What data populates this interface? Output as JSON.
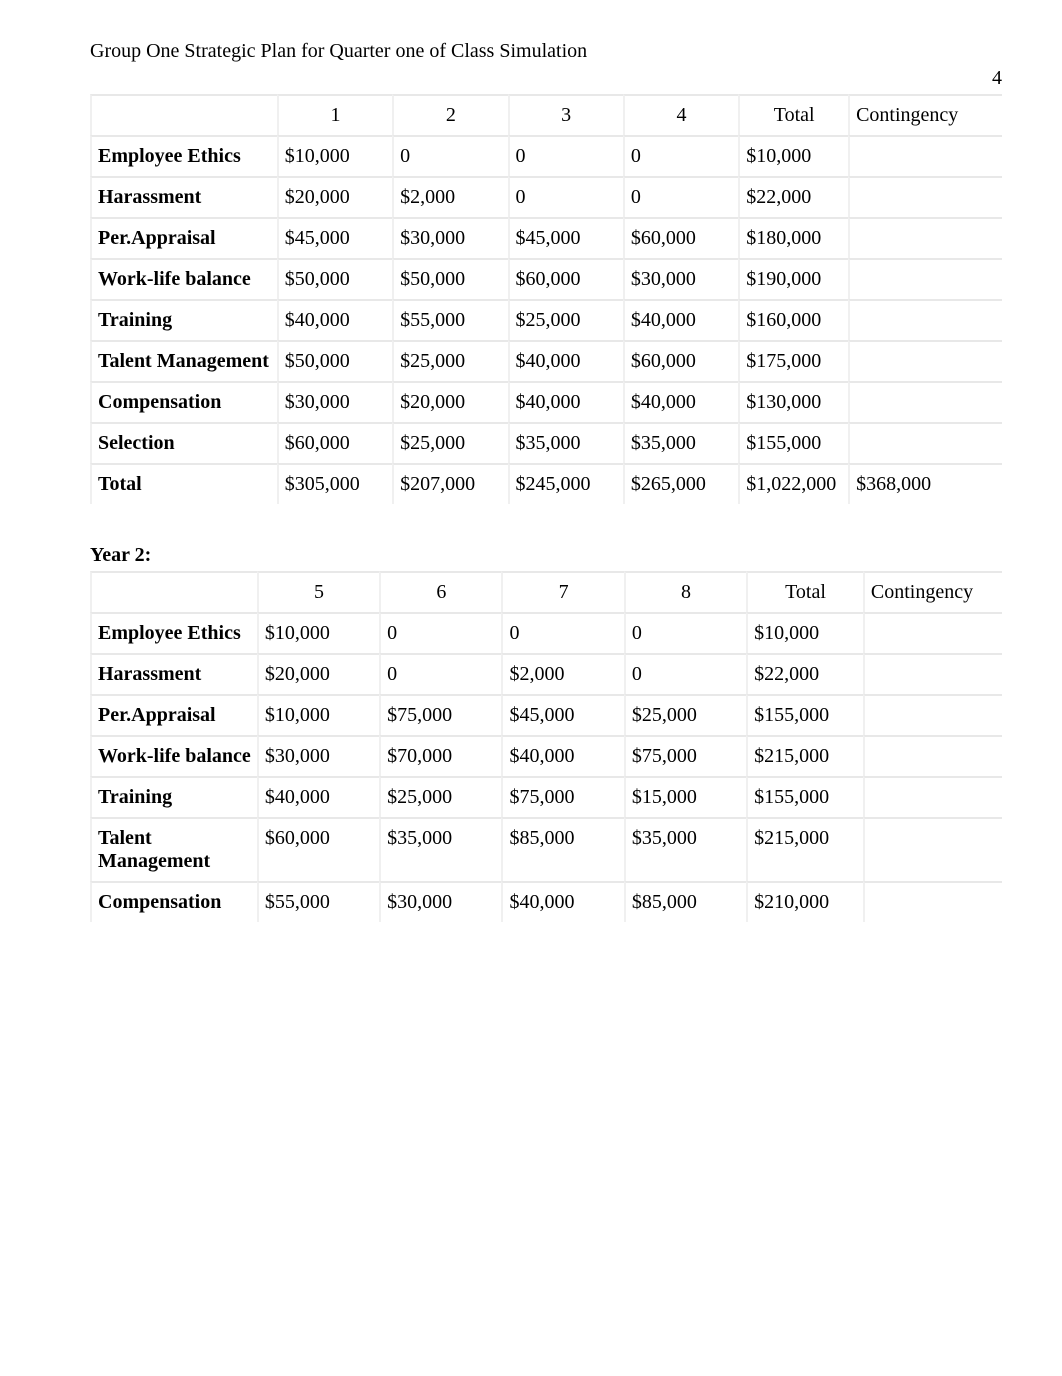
{
  "header": {
    "title": "Group One Strategic Plan for Quarter one of Class Simulation",
    "page_number": "4"
  },
  "table1": {
    "columns": [
      "",
      "1",
      "2",
      "3",
      "4",
      "Total",
      "Contingency"
    ],
    "rows": [
      {
        "label": "Employee Ethics",
        "c1": "$10,000",
        "c2": "0",
        "c3": "0",
        "c4": "0",
        "total": "$10,000",
        "cont": ""
      },
      {
        "label": "Harassment",
        "c1": "$20,000",
        "c2": "$2,000",
        "c3": "0",
        "c4": "0",
        "total": "$22,000",
        "cont": ""
      },
      {
        "label": "Per.Appraisal",
        "c1": "$45,000",
        "c2": "$30,000",
        "c3": "$45,000",
        "c4": "$60,000",
        "total": "$180,000",
        "cont": ""
      },
      {
        "label": "Work-life balance",
        "c1": "$50,000",
        "c2": "$50,000",
        "c3": "$60,000",
        "c4": "$30,000",
        "total": "$190,000",
        "cont": ""
      },
      {
        "label": "Training",
        "c1": "$40,000",
        "c2": "$55,000",
        "c3": "$25,000",
        "c4": "$40,000",
        "total": "$160,000",
        "cont": ""
      },
      {
        "label": "Talent Management",
        "c1": "$50,000",
        "c2": "$25,000",
        "c3": "$40,000",
        "c4": "$60,000",
        "total": "$175,000",
        "cont": ""
      },
      {
        "label": "Compensation",
        "c1": "$30,000",
        "c2": "$20,000",
        "c3": "$40,000",
        "c4": "$40,000",
        "total": "$130,000",
        "cont": ""
      },
      {
        "label": "Selection",
        "c1": "$60,000",
        "c2": "$25,000",
        "c3": "$35,000",
        "c4": "$35,000",
        "total": "$155,000",
        "cont": ""
      },
      {
        "label": "Total",
        "c1": "$305,000",
        "c2": "$207,000",
        "c3": "$245,000",
        "c4": "$265,000",
        "total": "$1,022,000",
        "cont": "$368,000"
      }
    ]
  },
  "section2_title": "Year 2:",
  "table2": {
    "columns": [
      "",
      "5",
      "6",
      "7",
      "8",
      "Total",
      "Contingency"
    ],
    "rows": [
      {
        "label": "Employee Ethics",
        "c1": "$10,000",
        "c2": "0",
        "c3": "0",
        "c4": "0",
        "total": "$10,000",
        "cont": ""
      },
      {
        "label": "Harassment",
        "c1": "$20,000",
        "c2": "0",
        "c3": "$2,000",
        "c4": "0",
        "total": "$22,000",
        "cont": ""
      },
      {
        "label": "Per.Appraisal",
        "c1": "$10,000",
        "c2": "$75,000",
        "c3": "$45,000",
        "c4": "$25,000",
        "total": "$155,000",
        "cont": ""
      },
      {
        "label": "Work-life balance",
        "c1": "$30,000",
        "c2": "$70,000",
        "c3": "$40,000",
        "c4": "$75,000",
        "total": "$215,000",
        "cont": ""
      },
      {
        "label": "Training",
        "c1": "$40,000",
        "c2": "$25,000",
        "c3": "$75,000",
        "c4": "$15,000",
        "total": "$155,000",
        "cont": ""
      },
      {
        "label": "Talent Management",
        "c1": "$60,000",
        "c2": "$35,000",
        "c3": "$85,000",
        "c4": "$35,000",
        "total": "$215,000",
        "cont": ""
      },
      {
        "label": "Compensation",
        "c1": "$55,000",
        "c2": "$30,000",
        "c3": "$40,000",
        "c4": "$85,000",
        "total": "$210,000",
        "cont": ""
      }
    ]
  }
}
